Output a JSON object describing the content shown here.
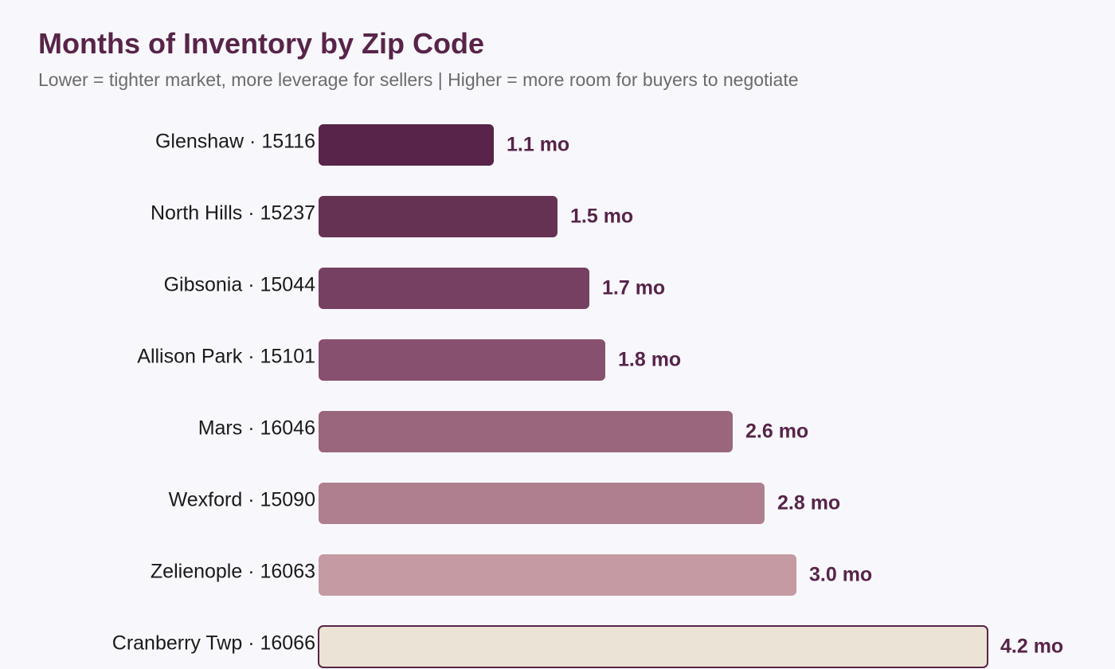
{
  "chart_data": {
    "type": "bar",
    "orientation": "horizontal",
    "title": "Months of Inventory by Zip Code",
    "subtitle": "Lower = tighter market, more leverage for sellers | Higher = more room for buyers to negotiate",
    "categories": [
      "Glenshaw · 15116",
      "North Hills · 15237",
      "Gibsonia · 15044",
      "Allison Park · 15101",
      "Mars · 16046",
      "Wexford · 15090",
      "Zelienople · 16063",
      "Cranberry Twp · 16066"
    ],
    "values": [
      1.1,
      1.5,
      1.7,
      1.8,
      2.6,
      2.8,
      3.0,
      4.2
    ],
    "value_labels": [
      "1.1 mo",
      "1.5 mo",
      "1.7 mo",
      "1.8 mo",
      "2.6 mo",
      "2.8 mo",
      "3.0 mo",
      "4.2 mo"
    ],
    "colors": [
      "#582449",
      "#663254",
      "#764062",
      "#87506f",
      "#9a667e",
      "#af7f8f",
      "#c59aa3",
      "#ebe3d5"
    ],
    "highlight_border": "#582449",
    "grid": false,
    "legend": "none"
  }
}
